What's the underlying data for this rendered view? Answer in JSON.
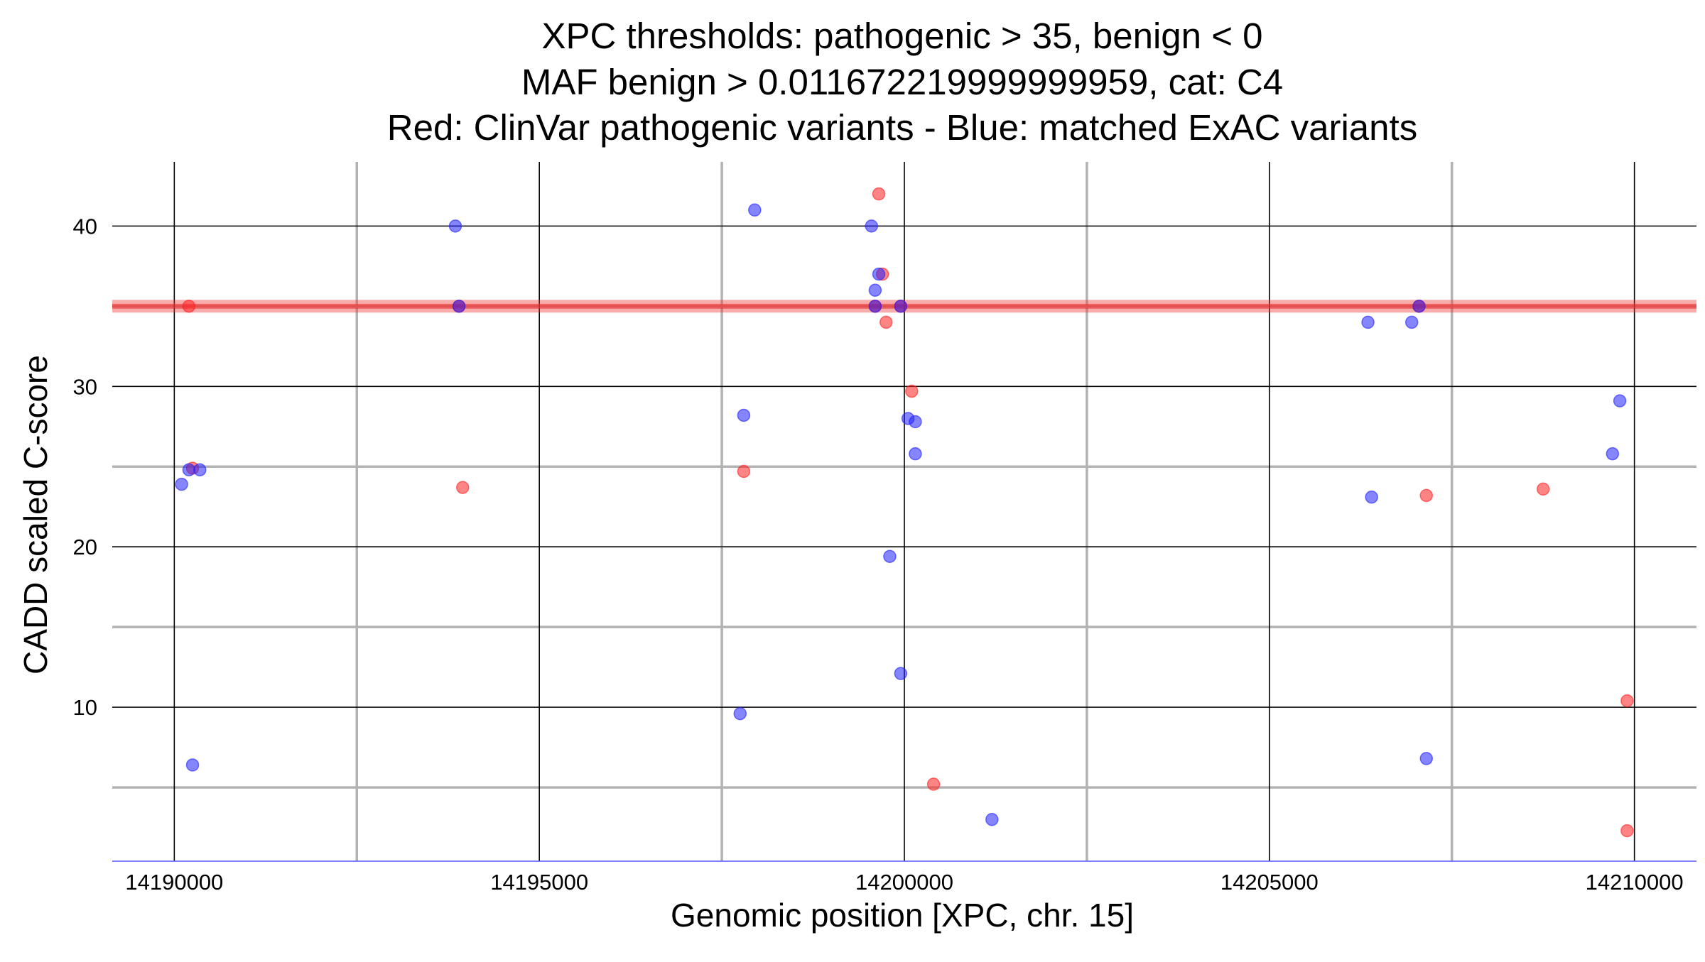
{
  "chart_data": {
    "type": "scatter",
    "title_lines": [
      "XPC thresholds: pathogenic > 35, benign < 0",
      "MAF benign > 0.011672219999999959, cat: C4",
      "Red: ClinVar pathogenic variants - Blue: matched ExAC variants"
    ],
    "xlabel": "Genomic position [XPC, chr. 15]",
    "ylabel": "CADD scaled C-score",
    "xlim": [
      14189150,
      14210850
    ],
    "ylim": [
      0.4,
      44
    ],
    "x_major_ticks": [
      14190000,
      14195000,
      14200000,
      14205000,
      14210000
    ],
    "x_minor_gridlines": [
      14192500,
      14197500,
      14202500,
      14207500
    ],
    "y_major_ticks": [
      10,
      20,
      30,
      40
    ],
    "y_minor_gridlines": [
      5,
      15,
      25,
      35
    ],
    "x_tick_labels": [
      "14190000",
      "14195000",
      "14200000",
      "14205000",
      "14210000"
    ],
    "y_tick_labels": [
      "10",
      "20",
      "30",
      "40"
    ],
    "threshold": {
      "pathogenic": 35,
      "benign": 0,
      "color": "#ee3333"
    },
    "series": [
      {
        "name": "ClinVar pathogenic variants",
        "color": "#ff2020",
        "points": [
          {
            "x": 14190200,
            "y": 35
          },
          {
            "x": 14190250,
            "y": 24.9
          },
          {
            "x": 14193900,
            "y": 35
          },
          {
            "x": 14193950,
            "y": 23.7
          },
          {
            "x": 14197800,
            "y": 24.7
          },
          {
            "x": 14199650,
            "y": 42
          },
          {
            "x": 14199700,
            "y": 37
          },
          {
            "x": 14199600,
            "y": 35
          },
          {
            "x": 14199750,
            "y": 34
          },
          {
            "x": 14199950,
            "y": 35
          },
          {
            "x": 14200100,
            "y": 29.7
          },
          {
            "x": 14200400,
            "y": 5.2
          },
          {
            "x": 14207050,
            "y": 35
          },
          {
            "x": 14207150,
            "y": 23.2
          },
          {
            "x": 14208750,
            "y": 23.6
          },
          {
            "x": 14209900,
            "y": 10.4
          },
          {
            "x": 14209900,
            "y": 2.3
          }
        ]
      },
      {
        "name": "matched ExAC variants",
        "color": "#2020ff",
        "points": [
          {
            "x": 14190100,
            "y": 23.9
          },
          {
            "x": 14190200,
            "y": 24.8
          },
          {
            "x": 14190350,
            "y": 24.8
          },
          {
            "x": 14190250,
            "y": 6.4
          },
          {
            "x": 14193850,
            "y": 40
          },
          {
            "x": 14193900,
            "y": 35
          },
          {
            "x": 14197950,
            "y": 41
          },
          {
            "x": 14197800,
            "y": 28.2
          },
          {
            "x": 14197750,
            "y": 9.6
          },
          {
            "x": 14199550,
            "y": 40
          },
          {
            "x": 14199650,
            "y": 37
          },
          {
            "x": 14199600,
            "y": 36
          },
          {
            "x": 14199600,
            "y": 35
          },
          {
            "x": 14199950,
            "y": 35
          },
          {
            "x": 14200050,
            "y": 28
          },
          {
            "x": 14200150,
            "y": 27.8
          },
          {
            "x": 14200150,
            "y": 25.8
          },
          {
            "x": 14199800,
            "y": 19.4
          },
          {
            "x": 14199950,
            "y": 12.1
          },
          {
            "x": 14201200,
            "y": 3
          },
          {
            "x": 14206350,
            "y": 34
          },
          {
            "x": 14206950,
            "y": 34
          },
          {
            "x": 14207050,
            "y": 35
          },
          {
            "x": 14206400,
            "y": 23.1
          },
          {
            "x": 14207150,
            "y": 6.8
          },
          {
            "x": 14209800,
            "y": 29.1
          },
          {
            "x": 14209700,
            "y": 25.8
          }
        ]
      }
    ]
  }
}
